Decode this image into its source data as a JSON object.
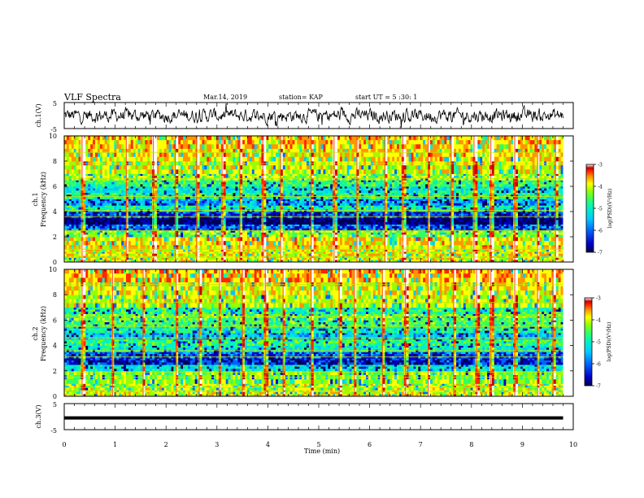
{
  "header": {
    "title": "VLF Spectra",
    "date": "Mar.14, 2019",
    "station": "station= KAP",
    "start_time": "start  UT =  5 :30: 1"
  },
  "colors": {
    "trace": "#000000",
    "spectrogram_background": "#33c8a0",
    "colormap": [
      "#000050",
      "#0000c8",
      "#0064ff",
      "#00c8ff",
      "#00f0c8",
      "#32ff64",
      "#96ff00",
      "#ffff00",
      "#ff9600",
      "#ff2800",
      "#c80000",
      "#ffffff"
    ]
  },
  "chart_data": [
    {
      "type": "line",
      "panel": "ch1",
      "ylabel": "ch.1(V)",
      "ylim": [
        -5,
        5
      ],
      "y_ticks": [
        "5",
        "-5"
      ],
      "xlim": [
        0,
        10
      ],
      "series": [
        {
          "x_range_min": [
            0,
            9.8
          ],
          "y_range": [
            -2.5,
            2.5
          ],
          "mean": 0
        }
      ]
    },
    {
      "type": "heatmap",
      "panel": "ch1-spectrogram",
      "ylabel": "ch.1\nFrequency (kHz)",
      "ylim": [
        0,
        10
      ],
      "y_ticks": [
        "0",
        "2",
        "4",
        "6",
        "8",
        "10"
      ],
      "xlim": [
        0,
        10
      ],
      "data_extent_min": 9.8,
      "colorbar": {
        "label": "log(PSD)(V²/Hz)",
        "range": [
          -7,
          -3
        ],
        "ticks": [
          "-3",
          "-4",
          "-5",
          "-6",
          "-7"
        ]
      },
      "bands": [
        {
          "f": [
            0,
            0.5
          ],
          "level": -4.6
        },
        {
          "f": [
            0.5,
            1.0
          ],
          "level": -4.5
        },
        {
          "f": [
            1.0,
            2.0
          ],
          "level": -4.4
        },
        {
          "f": [
            2.0,
            2.5
          ],
          "level": -4.9
        },
        {
          "f": [
            2.5,
            3.0
          ],
          "level": -6.2
        },
        {
          "f": [
            3.0,
            3.5
          ],
          "level": -6.8
        },
        {
          "f": [
            3.5,
            4.0
          ],
          "level": -6.3
        },
        {
          "f": [
            4.0,
            4.5
          ],
          "level": -5.4
        },
        {
          "f": [
            4.5,
            5.0
          ],
          "level": -6.0
        },
        {
          "f": [
            5.0,
            5.5
          ],
          "level": -5.3
        },
        {
          "f": [
            5.5,
            6.0
          ],
          "level": -5.6
        },
        {
          "f": [
            6.0,
            6.5
          ],
          "level": -5.2
        },
        {
          "f": [
            6.5,
            7.0
          ],
          "level": -4.8
        },
        {
          "f": [
            7.0,
            8.0
          ],
          "level": -4.6
        },
        {
          "f": [
            8.0,
            9.0
          ],
          "level": -4.4
        },
        {
          "f": [
            9.0,
            10.0
          ],
          "level": -4.3
        }
      ],
      "bursts_min": [
        0.35,
        1.22,
        1.75,
        2.18,
        2.6,
        3.1,
        3.45,
        3.9,
        4.25,
        4.85,
        5.3,
        5.75,
        6.3,
        6.65,
        7.15,
        7.6,
        8.05,
        8.38,
        8.85,
        9.3,
        9.65
      ],
      "horizontal_lines_khz": [
        0.4,
        0.8,
        1.0,
        1.1,
        2.5,
        3.6,
        4.1,
        5.2,
        6.6,
        7.8,
        8.7
      ]
    },
    {
      "type": "heatmap",
      "panel": "ch2-spectrogram",
      "ylabel": "ch.2\nFrequency (kHz)",
      "ylim": [
        0,
        10
      ],
      "y_ticks": [
        "0",
        "2",
        "4",
        "6",
        "8",
        "10"
      ],
      "xlim": [
        0,
        10
      ],
      "data_extent_min": 9.8,
      "colorbar": {
        "label": "log(PSD)(V²/Hz)",
        "range": [
          -7,
          -3
        ],
        "ticks": [
          "-3",
          "-4",
          "-5",
          "-6",
          "-7"
        ]
      },
      "bands": [
        {
          "f": [
            0,
            0.5
          ],
          "level": -4.6
        },
        {
          "f": [
            0.5,
            1.0
          ],
          "level": -4.7
        },
        {
          "f": [
            1.0,
            2.0
          ],
          "level": -4.9
        },
        {
          "f": [
            2.0,
            2.5
          ],
          "level": -5.6
        },
        {
          "f": [
            2.5,
            3.0
          ],
          "level": -6.4
        },
        {
          "f": [
            3.0,
            3.5
          ],
          "level": -6.2
        },
        {
          "f": [
            3.5,
            4.0
          ],
          "level": -5.5
        },
        {
          "f": [
            4.0,
            4.5
          ],
          "level": -5.2
        },
        {
          "f": [
            4.5,
            5.0
          ],
          "level": -5.8
        },
        {
          "f": [
            5.0,
            5.5
          ],
          "level": -5.4
        },
        {
          "f": [
            5.5,
            6.0
          ],
          "level": -5.1
        },
        {
          "f": [
            6.0,
            6.5
          ],
          "level": -5.0
        },
        {
          "f": [
            6.5,
            7.0
          ],
          "level": -5.3
        },
        {
          "f": [
            7.0,
            8.0
          ],
          "level": -4.7
        },
        {
          "f": [
            8.0,
            9.0
          ],
          "level": -4.5
        },
        {
          "f": [
            9.0,
            10.0
          ],
          "level": -4.2
        }
      ],
      "bursts_min": [
        0.35,
        0.95,
        1.55,
        2.2,
        2.65,
        3.05,
        3.5,
        3.95,
        4.3,
        4.85,
        5.4,
        5.7,
        6.25,
        6.7,
        7.15,
        7.65,
        8.1,
        8.38,
        8.85,
        9.3,
        9.6
      ],
      "horizontal_lines_khz": [
        0.4,
        0.7,
        1.5,
        1.9,
        3.1,
        3.6,
        4.6,
        5.5,
        6.3,
        7.4,
        8.8
      ]
    },
    {
      "type": "line",
      "panel": "ch3",
      "ylabel": "ch.3(V)",
      "ylim": [
        -5,
        5
      ],
      "y_ticks": [
        "5",
        "-5"
      ],
      "xlim": [
        0,
        10
      ],
      "xlabel": "Time (min)",
      "x_ticks": [
        "0",
        "1",
        "2",
        "3",
        "4",
        "5",
        "6",
        "7",
        "8",
        "9",
        "10"
      ],
      "series": [
        {
          "x_range_min": [
            0,
            9.8
          ],
          "y_constant": -0.5
        }
      ]
    }
  ]
}
